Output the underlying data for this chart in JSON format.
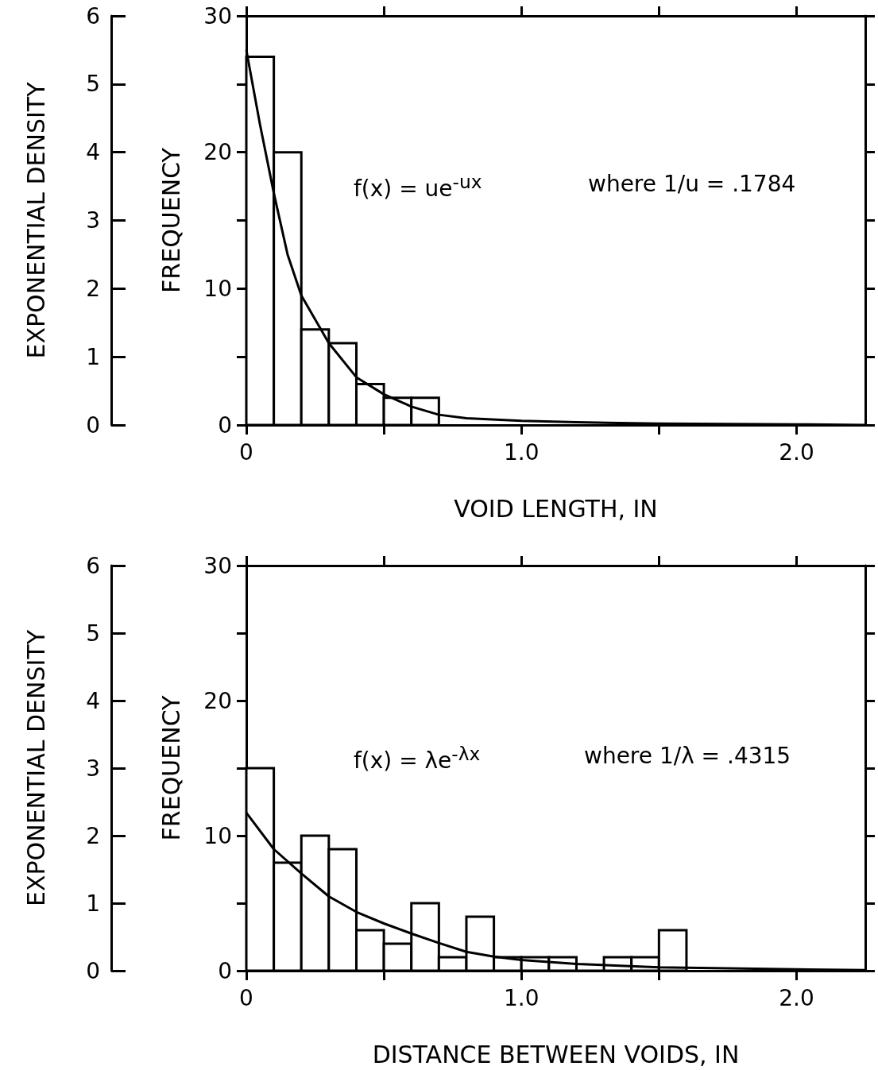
{
  "chart_data": [
    {
      "type": "histogram",
      "xlabel": "VOID LENGTH, IN",
      "ylabel": "FREQUENCY",
      "y2label": "EXPONENTIAL DENSITY",
      "annotations": [
        "f(x) = ue$^{-ux}$",
        "where 1/u = .1784"
      ],
      "xlim": [
        0,
        2.25
      ],
      "xticks": [
        0,
        {
          "value": 0.5,
          "label": null
        },
        {
          "value": 1,
          "label": "1.0"
        },
        {
          "value": 1.5,
          "label": null
        },
        {
          "value": 2,
          "label": "2.0"
        }
      ],
      "ylim": [
        0,
        30
      ],
      "yticks": [
        0,
        {
          "value": 5,
          "label": null
        },
        10,
        {
          "value": 15,
          "label": null
        },
        20,
        {
          "value": 25,
          "label": null
        },
        30
      ],
      "y2lim": [
        0,
        6
      ],
      "y2ticks": [
        0,
        1,
        2,
        3,
        4,
        5,
        6
      ],
      "series": [
        {
          "color": "#000000",
          "bins": [
            0,
            0.1,
            0.2,
            0.3,
            0.4,
            0.5,
            0.6,
            0.7
          ],
          "values": [
            27,
            20,
            7,
            6,
            3,
            2,
            2
          ]
        },
        {
          "type": "line",
          "axis": "y2",
          "color": "#000000",
          "marker": "none",
          "x": [
            0,
            0.05,
            0.1,
            0.15,
            0.2,
            0.3,
            0.4,
            0.5,
            0.6,
            0.7,
            0.8,
            1.0,
            1.2,
            1.5,
            2.0,
            2.25
          ],
          "values": [
            5.5,
            4.4,
            3.4,
            2.5,
            1.9,
            1.2,
            0.7,
            0.45,
            0.27,
            0.15,
            0.1,
            0.06,
            0.04,
            0.02,
            0.01,
            0.0
          ]
        }
      ]
    },
    {
      "type": "histogram",
      "xlabel": "DISTANCE BETWEEN VOIDS, IN",
      "ylabel": "FREQUENCY",
      "y2label": "EXPONENTIAL DENSITY",
      "annotations": [
        "f(x) = λe$^{-λx}$",
        "where 1/λ = .4315"
      ],
      "xlim": [
        0,
        2.25
      ],
      "xticks": [
        0,
        {
          "value": 0.5,
          "label": null
        },
        {
          "value": 1,
          "label": "1.0"
        },
        {
          "value": 1.5,
          "label": null
        },
        {
          "value": 2,
          "label": "2.0"
        }
      ],
      "ylim": [
        0,
        30
      ],
      "yticks": [
        0,
        {
          "value": 5,
          "label": null
        },
        10,
        {
          "value": 15,
          "label": null
        },
        20,
        {
          "value": 25,
          "label": null
        },
        30
      ],
      "y2lim": [
        0,
        6
      ],
      "y2ticks": [
        0,
        1,
        2,
        3,
        4,
        5,
        6
      ],
      "series": [
        {
          "color": "#000000",
          "bins": [
            0,
            0.1,
            0.2,
            0.3,
            0.4,
            0.5,
            0.6,
            0.7,
            0.8,
            0.9,
            1.0,
            1.1,
            1.2,
            1.3,
            1.4,
            1.5,
            1.6
          ],
          "values": [
            15,
            8,
            10,
            9,
            3,
            2,
            5,
            1,
            4,
            1,
            1,
            1,
            0,
            1,
            1,
            3
          ]
        },
        {
          "type": "line",
          "axis": "y2",
          "color": "#000000",
          "marker": "none",
          "x": [
            0,
            0.1,
            0.2,
            0.3,
            0.4,
            0.5,
            0.6,
            0.7,
            0.8,
            0.9,
            1.0,
            1.2,
            1.5,
            2.0,
            2.25
          ],
          "values": [
            2.34,
            1.8,
            1.44,
            1.1,
            0.87,
            0.7,
            0.55,
            0.41,
            0.28,
            0.21,
            0.16,
            0.1,
            0.05,
            0.02,
            0.01
          ]
        }
      ]
    }
  ]
}
